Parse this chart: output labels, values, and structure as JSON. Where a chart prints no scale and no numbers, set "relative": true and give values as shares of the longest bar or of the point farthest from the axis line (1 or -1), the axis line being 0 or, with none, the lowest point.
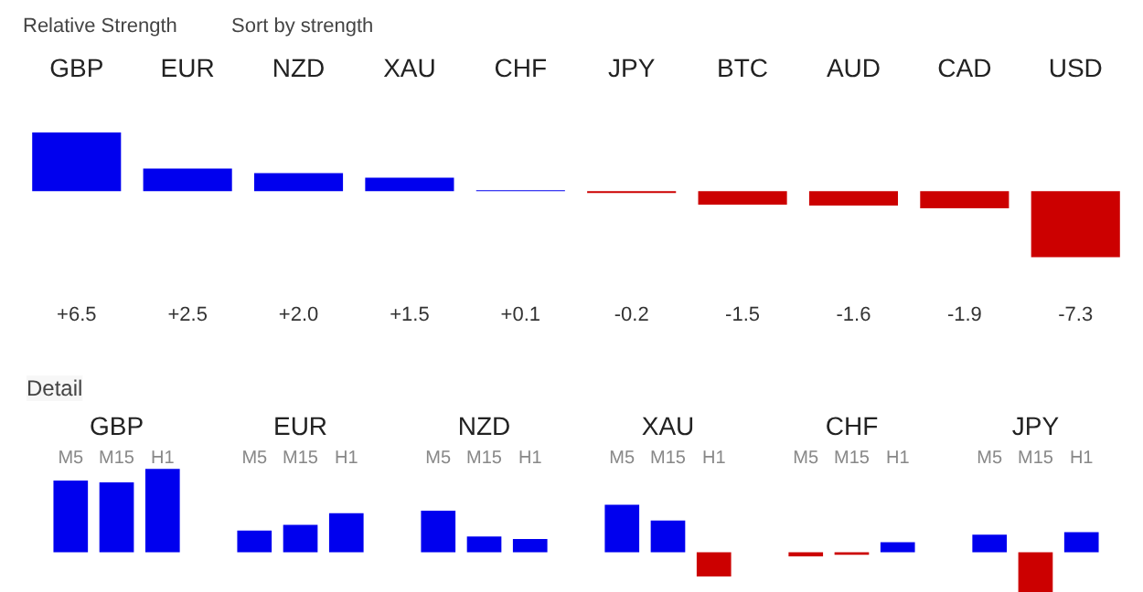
{
  "chart_data": [
    {
      "type": "bar",
      "title": "Relative Strength",
      "annotations": [
        "Sort by strength"
      ],
      "categories": [
        "GBP",
        "EUR",
        "NZD",
        "XAU",
        "CHF",
        "JPY",
        "BTC",
        "AUD",
        "CAD",
        "USD"
      ],
      "values": [
        6.5,
        2.5,
        2.0,
        1.5,
        0.1,
        -0.2,
        -1.5,
        -1.6,
        -1.9,
        -7.3
      ],
      "colors": [
        "#0000ee",
        "#0000ee",
        "#0000ee",
        "#0000ee",
        "#0000ee",
        "#cc0000",
        "#cc0000",
        "#cc0000",
        "#cc0000",
        "#cc0000"
      ],
      "value_labels": [
        "+6.5",
        "+2.5",
        "+2.0",
        "+1.5",
        "+0.1",
        "-0.2",
        "-1.5",
        "-1.6",
        "-1.9",
        "-7.3"
      ]
    },
    {
      "type": "bar",
      "title": "Detail",
      "relative": true,
      "categories": [
        "GBP",
        "EUR",
        "NZD",
        "XAU",
        "CHF",
        "JPY"
      ],
      "series": [
        {
          "name": "M5",
          "values": [
            0.86,
            0.26,
            0.5,
            0.57,
            -0.05,
            0.21
          ],
          "colors": [
            "#0000ee",
            "#0000ee",
            "#0000ee",
            "#0000ee",
            "#cc0000",
            "#0000ee"
          ]
        },
        {
          "name": "M15",
          "values": [
            0.84,
            0.33,
            0.19,
            0.38,
            -0.03,
            -0.48
          ],
          "colors": [
            "#0000ee",
            "#0000ee",
            "#0000ee",
            "#0000ee",
            "#cc0000",
            "#cc0000"
          ]
        },
        {
          "name": "H1",
          "values": [
            1,
            0.47,
            0.16,
            -0.29,
            0.12,
            0.24
          ],
          "colors": [
            "#0000ee",
            "#0000ee",
            "#0000ee",
            "#cc0000",
            "#0000ee",
            "#0000ee"
          ]
        }
      ]
    }
  ]
}
